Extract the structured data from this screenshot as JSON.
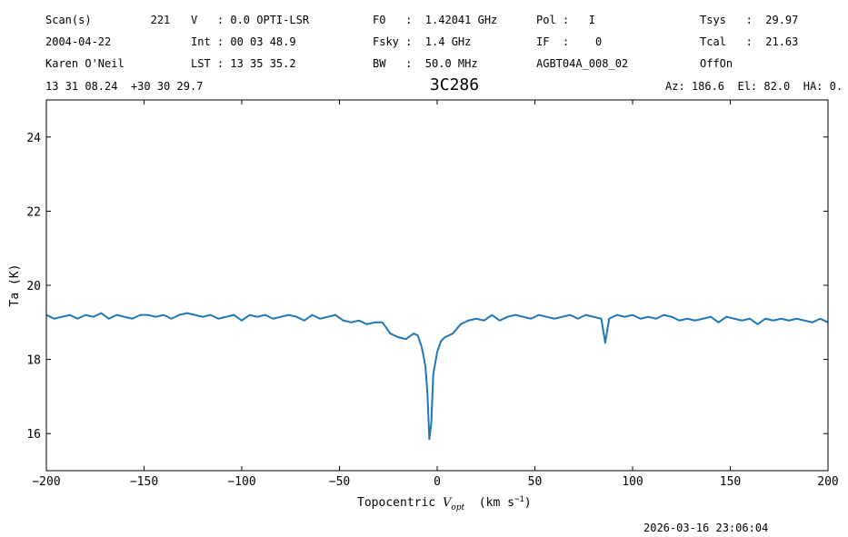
{
  "chart_data": {
    "type": "line",
    "header": [
      [
        "Scan(s)         221",
        "V   : 0.0 OPTI-LSR",
        "F0   :  1.42041 GHz",
        "Pol :   I",
        "Tsys   :  29.97"
      ],
      [
        "2004-04-22",
        "Int : 00 03 48.9",
        "Fsky :  1.4 GHz",
        "IF  :    0",
        "Tcal   :  21.63"
      ],
      [
        "Karen O'Neil",
        "LST : 13 35 35.2",
        "BW   :  50.0 MHz",
        "AGBT04A_008_02",
        "OffOn"
      ]
    ],
    "position": "13 31 08.24  +30 30 29.7",
    "pointing": "Az: 186.6  El: 82.0  HA: 0.",
    "title": "3C286",
    "xlabel": [
      "Topocentric ",
      "V",
      "opt",
      "  (km s",
      "−1",
      ")"
    ],
    "ylabel": "Ta (K)",
    "timestamp": "2026-03-16 23:06:04",
    "x": [
      -200,
      -196,
      -192,
      -188,
      -184,
      -180,
      -176,
      -172,
      -168,
      -164,
      -160,
      -156,
      -152,
      -148,
      -144,
      -140,
      -136,
      -132,
      -128,
      -124,
      -120,
      -116,
      -112,
      -108,
      -104,
      -100,
      -96,
      -92,
      -88,
      -84,
      -80,
      -76,
      -72,
      -68,
      -64,
      -60,
      -56,
      -52,
      -48,
      -44,
      -40,
      -36,
      -32,
      -28,
      -24,
      -20,
      -16,
      -12,
      -10,
      -8,
      -7,
      -6,
      -5,
      -4,
      -3,
      -2,
      -1,
      0,
      2,
      4,
      8,
      12,
      16,
      20,
      24,
      28,
      32,
      36,
      40,
      44,
      48,
      52,
      56,
      60,
      64,
      68,
      72,
      76,
      80,
      84,
      86,
      88,
      92,
      96,
      100,
      104,
      108,
      112,
      116,
      120,
      124,
      128,
      132,
      136,
      140,
      144,
      148,
      152,
      156,
      160,
      164,
      168,
      172,
      176,
      180,
      184,
      188,
      192,
      196,
      200
    ],
    "series": [
      {
        "color": "#1f77b4",
        "values": [
          19.2,
          19.1,
          19.15,
          19.2,
          19.1,
          19.2,
          19.15,
          19.25,
          19.1,
          19.2,
          19.15,
          19.1,
          19.2,
          19.2,
          19.15,
          19.2,
          19.1,
          19.2,
          19.25,
          19.2,
          19.15,
          19.2,
          19.1,
          19.15,
          19.2,
          19.05,
          19.2,
          19.15,
          19.2,
          19.1,
          19.15,
          19.2,
          19.15,
          19.05,
          19.2,
          19.1,
          19.15,
          19.2,
          19.05,
          19.0,
          19.05,
          18.95,
          19.0,
          19.0,
          18.7,
          18.6,
          18.55,
          18.7,
          18.65,
          18.35,
          18.1,
          17.8,
          17.1,
          15.85,
          16.3,
          17.6,
          17.9,
          18.2,
          18.5,
          18.6,
          18.7,
          18.95,
          19.05,
          19.1,
          19.05,
          19.2,
          19.05,
          19.15,
          19.2,
          19.15,
          19.1,
          19.2,
          19.15,
          19.1,
          19.15,
          19.2,
          19.1,
          19.2,
          19.15,
          19.1,
          18.45,
          19.1,
          19.2,
          19.15,
          19.2,
          19.1,
          19.15,
          19.1,
          19.2,
          19.15,
          19.05,
          19.1,
          19.05,
          19.1,
          19.15,
          19.0,
          19.15,
          19.1,
          19.05,
          19.1,
          18.95,
          19.1,
          19.05,
          19.1,
          19.05,
          19.1,
          19.05,
          19.0,
          19.1,
          19.0
        ]
      }
    ],
    "xlim": [
      -200,
      200
    ],
    "xticks": [
      {
        "value": -200,
        "label": "−200"
      },
      {
        "value": -150,
        "label": "−150"
      },
      {
        "value": -100,
        "label": "−100"
      },
      {
        "value": -50,
        "label": "−50"
      },
      0,
      50,
      100,
      150,
      200
    ],
    "ylim": [
      15,
      25
    ],
    "yticks": [
      16,
      18,
      20,
      22,
      24
    ]
  }
}
